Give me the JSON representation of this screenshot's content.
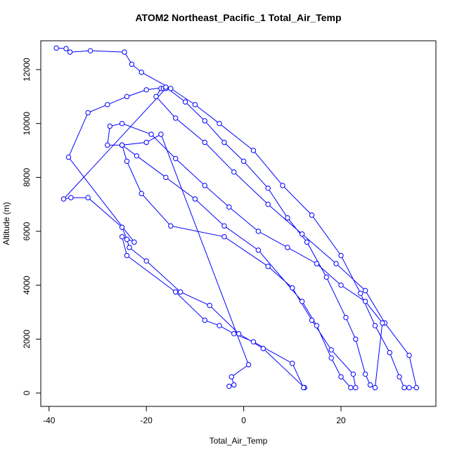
{
  "chart_data": {
    "type": "line",
    "title": "ATOM2 Northeast_Pacific_1 Total_Air_Temp",
    "x_label": "Total_Air_Temp",
    "y_label": "Altitude (m)",
    "xlim": [
      -41.7,
      39.5
    ],
    "ylim": [
      -496,
      13070
    ],
    "xticks": [
      -40,
      -20,
      0,
      20
    ],
    "yticks": [
      0,
      2000,
      4000,
      6000,
      8000,
      10000,
      12000
    ],
    "series": [
      {
        "color": "#0000ff",
        "x": [
          -38.5,
          -36.5,
          -35.7,
          -31.5,
          -24.5,
          -23,
          -21,
          -15,
          -10,
          -5,
          2,
          8,
          14,
          20,
          24,
          27,
          30,
          32,
          33,
          34,
          35.5,
          34,
          29,
          25,
          19,
          12,
          5,
          -2,
          -8,
          -14,
          -18,
          -17,
          -16.5,
          -16,
          -37,
          -35.5,
          -32,
          -25,
          -24,
          -23.5,
          -20,
          -13,
          -7,
          -1,
          4,
          12.5,
          12.3,
          10,
          2,
          -2,
          -5,
          -8,
          -14,
          -24,
          -25,
          -22.5,
          -36,
          -32,
          -28,
          -24,
          -20,
          -16,
          -12,
          -8,
          -4,
          0,
          5,
          9,
          13,
          17,
          21,
          23,
          25,
          26,
          27,
          28.5,
          25,
          20,
          15,
          9,
          3,
          -3,
          -8,
          -14,
          -19,
          -25,
          -27.5,
          -28,
          -25,
          -22,
          -16,
          -10,
          -4,
          3,
          12,
          15,
          18,
          20,
          22,
          23,
          22.5,
          18,
          14,
          10,
          5,
          -4,
          -15,
          -21,
          -24,
          -25,
          -20,
          -17,
          1,
          -2.5,
          -2,
          -3
        ],
        "values": [
          12800,
          12780,
          12650,
          12700,
          12650,
          12200,
          11900,
          11300,
          10700,
          10000,
          9000,
          7700,
          6600,
          5100,
          3700,
          2500,
          1500,
          600,
          200,
          200,
          200,
          1400,
          2600,
          3800,
          4800,
          5900,
          7000,
          8200,
          9300,
          10200,
          11000,
          11300,
          11300,
          11300,
          7200,
          7250,
          7250,
          6150,
          5700,
          5400,
          4900,
          3750,
          3250,
          2200,
          1650,
          200,
          200,
          1100,
          1900,
          2200,
          2500,
          2700,
          3750,
          5100,
          5800,
          5600,
          8750,
          10400,
          10700,
          11000,
          11250,
          11350,
          10800,
          10100,
          9300,
          8600,
          7600,
          6500,
          5600,
          4300,
          2800,
          2000,
          700,
          300,
          200,
          2600,
          3400,
          4000,
          4800,
          5400,
          6000,
          6900,
          7700,
          8700,
          9600,
          10000,
          9900,
          9200,
          9200,
          8800,
          8000,
          7200,
          6200,
          5300,
          3400,
          2500,
          1300,
          600,
          200,
          200,
          700,
          1600,
          2700,
          3900,
          4700,
          5800,
          6200,
          7400,
          8600,
          9200,
          9300,
          9600,
          1050,
          600,
          300,
          250
        ]
      }
    ]
  }
}
